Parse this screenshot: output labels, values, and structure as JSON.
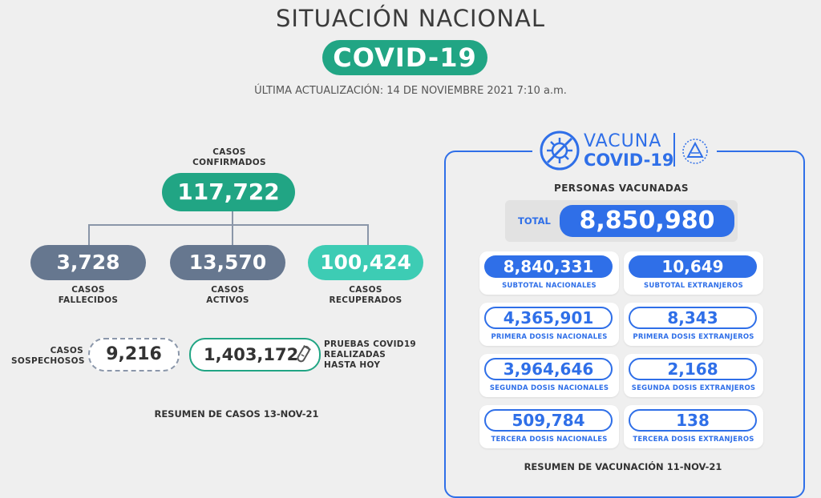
{
  "header": {
    "title": "SITUACIÓN NACIONAL",
    "badge": "COVID-19",
    "updated": "ÚLTIMA ACTUALIZACIÓN: 14 DE NOVIEMBRE 2021 7:10 a.m."
  },
  "cases": {
    "confirmed_label_1": "CASOS",
    "confirmed_label_2": "CONFIRMADOS",
    "confirmed": "117,722",
    "deceased": "3,728",
    "deceased_label_1": "CASOS",
    "deceased_label_2": "FALLECIDOS",
    "active": "13,570",
    "active_label_1": "CASOS",
    "active_label_2": "ACTIVOS",
    "recovered": "100,424",
    "recovered_label_1": "CASOS",
    "recovered_label_2": "RECUPERADOS",
    "suspected_label_1": "CASOS",
    "suspected_label_2": "SOSPECHOSOS",
    "suspected": "9,216",
    "tests": "1,403,172",
    "tests_label_1": "PRUEBAS COVID19",
    "tests_label_2": "REALIZADAS",
    "tests_label_3": "HASTA HOY",
    "summary": "RESUMEN DE CASOS 13-NOV-21"
  },
  "vaccine": {
    "logo_line1": "VACUNA",
    "logo_line2": "COVID-19",
    "heading": "PERSONAS VACUNADAS",
    "total_label": "TOTAL",
    "total": "8,850,980",
    "cells": [
      {
        "value": "8,840,331",
        "label": "SUBTOTAL NACIONALES"
      },
      {
        "value": "10,649",
        "label": "SUBTOTAL EXTRANJEROS"
      },
      {
        "value": "4,365,901",
        "label": "PRIMERA DOSIS NACIONALES"
      },
      {
        "value": "8,343",
        "label": "PRIMERA DOSIS EXTRANJEROS"
      },
      {
        "value": "3,964,646",
        "label": "SEGUNDA DOSIS NACIONALES"
      },
      {
        "value": "2,168",
        "label": "SEGUNDA DOSIS EXTRANJEROS"
      },
      {
        "value": "509,784",
        "label": "TERCERA DOSIS NACIONALES"
      },
      {
        "value": "138",
        "label": "TERCERA DOSIS EXTRANJEROS"
      }
    ],
    "summary": "RESUMEN DE VACUNACIÓN 11-NOV-21"
  },
  "colors": {
    "green": "#21a584",
    "slate": "#66778f",
    "teal": "#3dccb4",
    "blue": "#2f6fe8"
  },
  "icons": [
    "virus-icon",
    "coat-of-arms-icon",
    "test-tube-icon"
  ]
}
